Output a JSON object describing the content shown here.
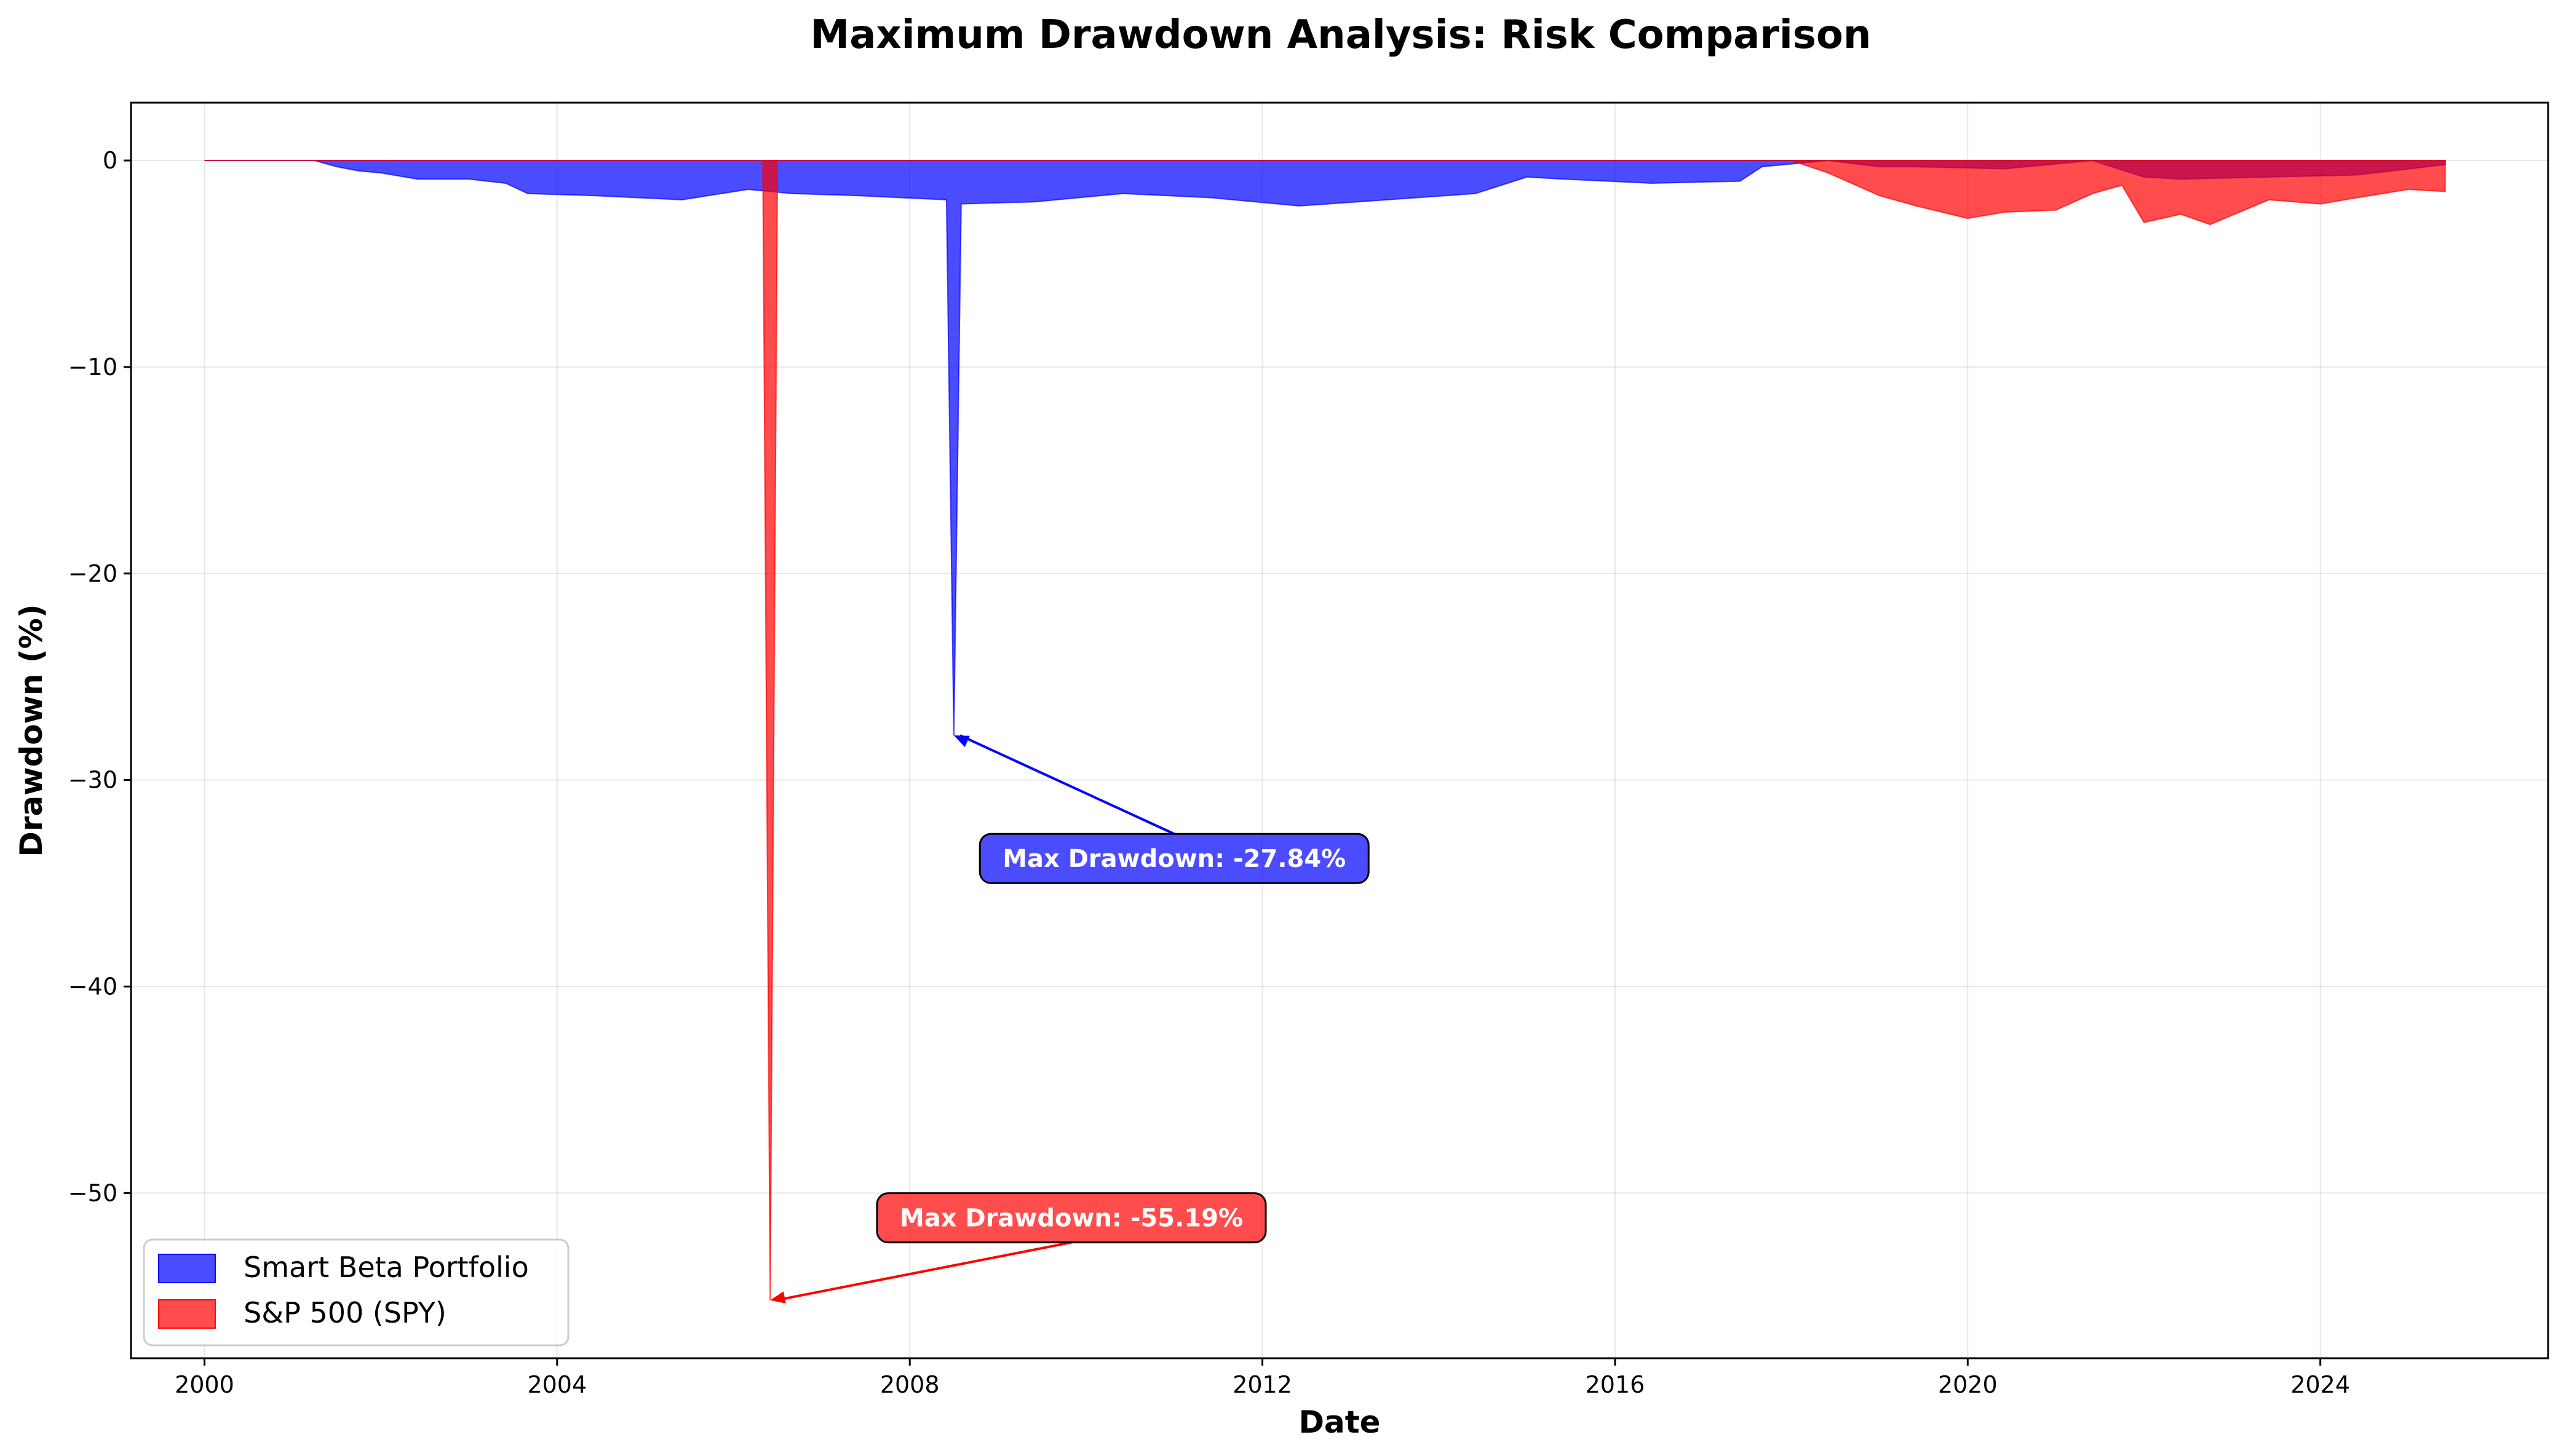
{
  "chart_data": {
    "type": "area",
    "title": "Maximum Drawdown Analysis: Risk Comparison",
    "xlabel": "Date",
    "ylabel": "Drawdown (%)",
    "xlim": [
      "1999-03",
      "2026-08"
    ],
    "ylim": [
      -58,
      2.8
    ],
    "x_ticks": [
      "2000",
      "2004",
      "2008",
      "2012",
      "2016",
      "2020",
      "2024"
    ],
    "y_ticks": [
      0,
      -10,
      -20,
      -30,
      -40,
      -50
    ],
    "grid": true,
    "legend_position": "lower-left",
    "series": [
      {
        "name": "Smart Beta Portfolio",
        "color": "#0000ff",
        "alpha": 0.7,
        "points": [
          [
            "2000-01",
            0
          ],
          [
            "2001-04",
            0
          ],
          [
            "2001-07",
            -0.3
          ],
          [
            "2001-10",
            -0.5
          ],
          [
            "2002-01",
            -0.6
          ],
          [
            "2002-06",
            -0.9
          ],
          [
            "2003-01",
            -0.9
          ],
          [
            "2003-06",
            -1.1
          ],
          [
            "2003-09",
            -1.6
          ],
          [
            "2004-06",
            -1.7
          ],
          [
            "2005-06",
            -1.9
          ],
          [
            "2006-03",
            -1.4
          ],
          [
            "2006-06",
            -1.5
          ],
          [
            "2006-09",
            -1.6
          ],
          [
            "2007-06",
            -1.7
          ],
          [
            "2008-06",
            -1.9
          ],
          [
            "2008-07",
            -27.84
          ],
          [
            "2008-08",
            -2.1
          ],
          [
            "2009-06",
            -2.0
          ],
          [
            "2010-06",
            -1.6
          ],
          [
            "2011-06",
            -1.8
          ],
          [
            "2012-06",
            -2.2
          ],
          [
            "2013-06",
            -1.9
          ],
          [
            "2014-06",
            -1.6
          ],
          [
            "2015-01",
            -0.8
          ],
          [
            "2015-06",
            -0.9
          ],
          [
            "2016-06",
            -1.1
          ],
          [
            "2017-06",
            -1.0
          ],
          [
            "2017-09",
            -0.3
          ],
          [
            "2018-06",
            0
          ],
          [
            "2019-01",
            -0.3
          ],
          [
            "2019-06",
            -0.3
          ],
          [
            "2020-06",
            -0.4
          ],
          [
            "2021-06",
            0
          ],
          [
            "2022-01",
            -0.8
          ],
          [
            "2022-06",
            -0.9
          ],
          [
            "2023-06",
            -0.8
          ],
          [
            "2024-06",
            -0.7
          ],
          [
            "2025-06",
            -0.2
          ]
        ]
      },
      {
        "name": "S&P 500 (SPY)",
        "color": "#ff0000",
        "alpha": 0.7,
        "points": [
          [
            "2000-01",
            0
          ],
          [
            "2006-05",
            0
          ],
          [
            "2006-06",
            -55.19
          ],
          [
            "2006-07",
            0
          ],
          [
            "2018-01",
            0
          ],
          [
            "2018-06",
            -0.6
          ],
          [
            "2019-01",
            -1.7
          ],
          [
            "2019-06",
            -2.2
          ],
          [
            "2020-01",
            -2.8
          ],
          [
            "2020-06",
            -2.5
          ],
          [
            "2021-01",
            -2.4
          ],
          [
            "2021-06",
            -1.6
          ],
          [
            "2021-10",
            -1.2
          ],
          [
            "2022-01",
            -3.0
          ],
          [
            "2022-06",
            -2.6
          ],
          [
            "2022-10",
            -3.1
          ],
          [
            "2023-06",
            -1.9
          ],
          [
            "2024-01",
            -2.1
          ],
          [
            "2024-06",
            -1.8
          ],
          [
            "2025-01",
            -1.4
          ],
          [
            "2025-06",
            -1.5
          ]
        ]
      }
    ],
    "annotations": [
      {
        "text": "Max Drawdown: -27.84%",
        "series": "Smart Beta Portfolio",
        "date": "2008-07",
        "value": -27.84,
        "text_date": "2011-01",
        "text_value": -33.8
      },
      {
        "text": "Max Drawdown: -55.19%",
        "series": "S&P 500 (SPY)",
        "date": "2006-06",
        "value": -55.19,
        "text_date": "2009-11",
        "text_value": -51.2
      }
    ]
  }
}
